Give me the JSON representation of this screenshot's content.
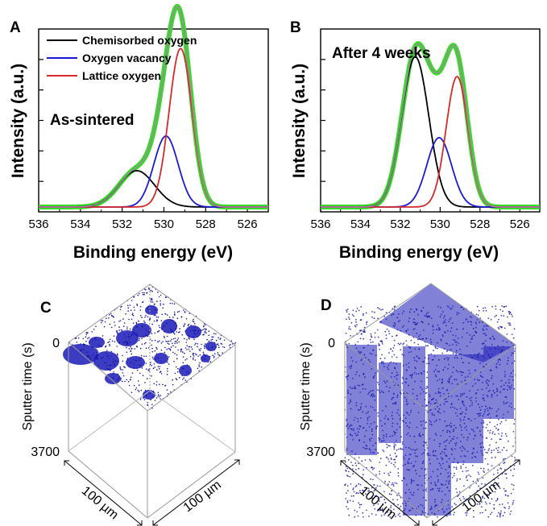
{
  "chart_data": [
    {
      "panel": "A",
      "type": "line",
      "xlabel": "Binding energy (eV)",
      "ylabel": "Intensity (a.u.)",
      "xlim": [
        536,
        525
      ],
      "x_ticks": [
        "536",
        "534",
        "532",
        "530",
        "528",
        "526"
      ],
      "annotation": "As-sintered",
      "series": [
        {
          "name": "Chemisorbed oxygen",
          "color": "#000000",
          "center": 531.3,
          "height": 0.22,
          "width": 0.85
        },
        {
          "name": "Oxygen vacancy",
          "color": "#1a1ad6",
          "center": 529.9,
          "height": 0.43,
          "width": 0.58
        },
        {
          "name": "Lattice oxygen",
          "color": "#d42a2a",
          "center": 529.2,
          "height": 0.96,
          "width": 0.55
        }
      ],
      "fit_color": "#b07ab8",
      "data_color": "#33dd22"
    },
    {
      "panel": "B",
      "type": "line",
      "xlabel": "Binding energy (eV)",
      "ylabel": "Intensity (a.u.)",
      "xlim": [
        536,
        525
      ],
      "x_ticks": [
        "536",
        "534",
        "532",
        "530",
        "528",
        "526"
      ],
      "annotation": "After 4 weeks",
      "series": [
        {
          "name": "Chemisorbed oxygen",
          "color": "#000000",
          "center": 531.25,
          "height": 0.91,
          "width": 0.68
        },
        {
          "name": "Oxygen vacancy",
          "color": "#1a1ad6",
          "center": 530.05,
          "height": 0.42,
          "width": 0.62
        },
        {
          "name": "Lattice oxygen",
          "color": "#d42a2a",
          "center": 529.15,
          "height": 0.79,
          "width": 0.55
        }
      ],
      "fit_color": "#b07ab8",
      "data_color": "#33dd22"
    }
  ],
  "panels": {
    "A": {
      "label": "A"
    },
    "B": {
      "label": "B"
    },
    "C": {
      "label": "C",
      "y_axis_label": "Sputter time (s)",
      "y_top": "0",
      "y_bottom": "3700",
      "dim1": "100 µm",
      "dim2": "100 µm"
    },
    "D": {
      "label": "D",
      "y_axis_label": "Sputter time (s)",
      "y_top": "0",
      "y_bottom": "3700",
      "dim1": "100 µm",
      "dim2": "100 µm"
    }
  },
  "colors": {
    "cube_fill": "#1a1ab8",
    "cube_dark": "#0a0a80"
  }
}
